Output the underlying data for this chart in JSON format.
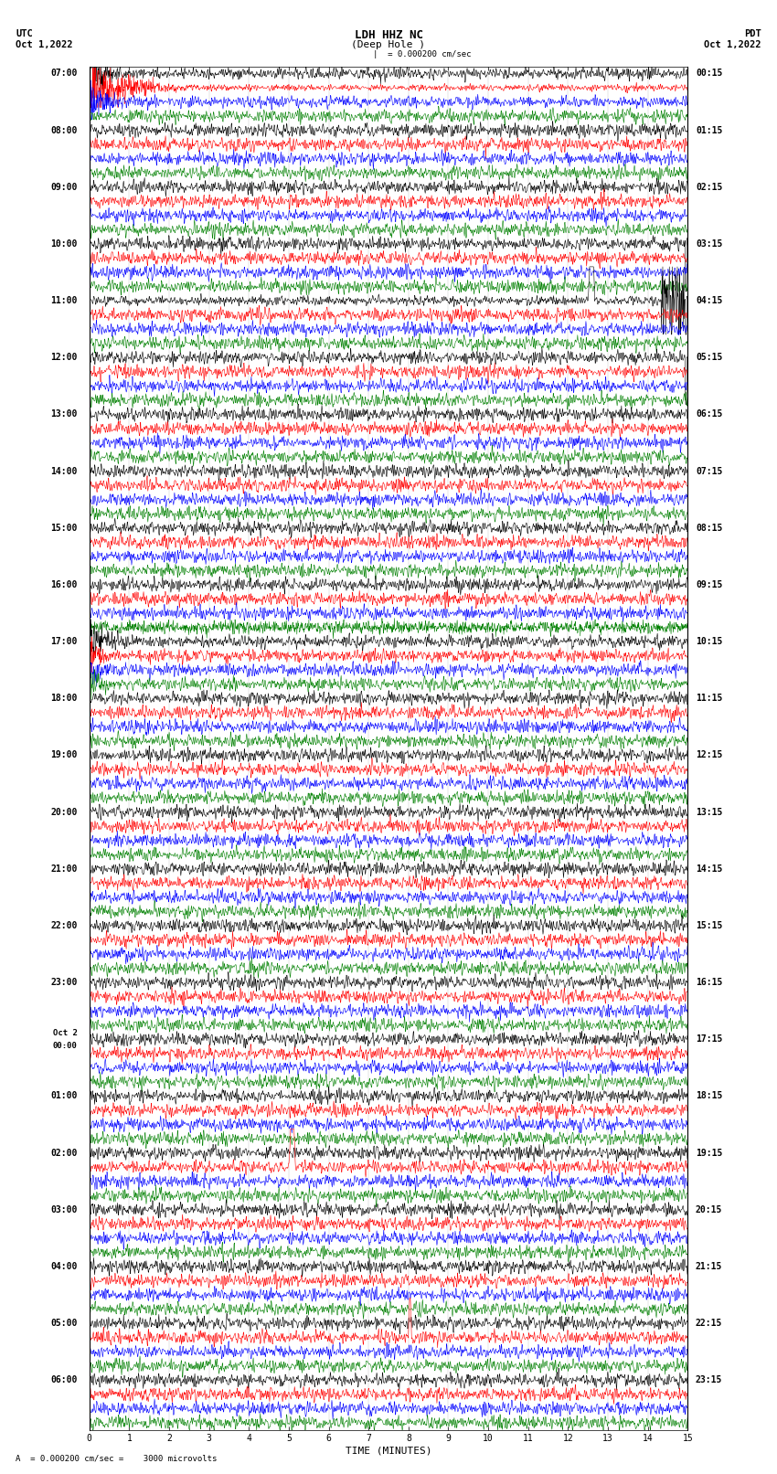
{
  "title_line1": "LDH HHZ NC",
  "title_line2": "(Deep Hole )",
  "scale_label": "= 0.000200 cm/sec",
  "scale_label2": "A  = 0.000200 cm/sec =    3000 microvolts",
  "utc_label": "UTC",
  "utc_date": "Oct 1,2022",
  "pdt_label": "PDT",
  "pdt_date": "Oct 1,2022",
  "xlabel": "TIME (MINUTES)",
  "bg_color": "#ffffff",
  "trace_colors": [
    "#000000",
    "#ff0000",
    "#0000ff",
    "#008000"
  ],
  "left_times": [
    "07:00",
    "08:00",
    "09:00",
    "10:00",
    "11:00",
    "12:00",
    "13:00",
    "14:00",
    "15:00",
    "16:00",
    "17:00",
    "18:00",
    "19:00",
    "20:00",
    "21:00",
    "22:00",
    "23:00",
    "Oct 2\n00:00",
    "01:00",
    "02:00",
    "03:00",
    "04:00",
    "05:00",
    "06:00"
  ],
  "right_times": [
    "00:15",
    "01:15",
    "02:15",
    "03:15",
    "04:15",
    "05:15",
    "06:15",
    "07:15",
    "08:15",
    "09:15",
    "10:15",
    "11:15",
    "12:15",
    "13:15",
    "14:15",
    "15:15",
    "16:15",
    "17:15",
    "18:15",
    "19:15",
    "20:15",
    "21:15",
    "22:15",
    "23:15"
  ],
  "num_hour_groups": 24,
  "minutes_range": 15,
  "num_points": 1800
}
